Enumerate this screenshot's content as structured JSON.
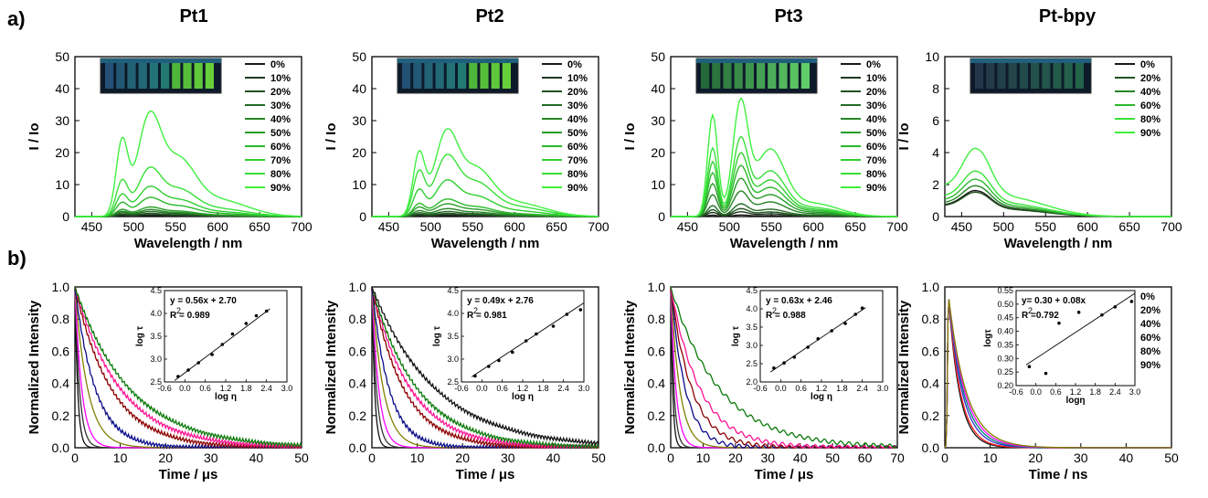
{
  "figure": {
    "row_labels": [
      "a)",
      "b)"
    ],
    "column_titles": [
      "Pt1",
      "Pt2",
      "Pt3",
      "Pt-bpy"
    ]
  },
  "colors": {
    "green_shades": [
      "#1a1a1a",
      "#1e3a1e",
      "#215221",
      "#226b22",
      "#258525",
      "#289d28",
      "#2cb82c",
      "#30cf30",
      "#38e038",
      "#40f040"
    ],
    "bpy_green": [
      "#1a1a1a",
      "#215221",
      "#258525",
      "#2cb82c",
      "#38e038",
      "#40f040"
    ],
    "decay_pt1_3": [
      "#111111",
      "#333333",
      "#ff00ff",
      "#808000",
      "#0b0b8a",
      "#8b0000",
      "#ff1493",
      "#0a7a0a"
    ],
    "decay_bpy": [
      "#111111",
      "#ff2020",
      "#3030d0",
      "#00807a",
      "#ff00ff",
      "#808000"
    ]
  },
  "chart_data": [
    {
      "type": "line",
      "panel": "a",
      "title": "Pt1",
      "xlabel": "Wavelength / nm",
      "ylabel": "I / Io",
      "xlim": [
        430,
        700
      ],
      "ylim": [
        0,
        50
      ],
      "xticks": [
        450,
        500,
        550,
        600,
        650,
        700
      ],
      "yticks": [
        0,
        10,
        20,
        30,
        40,
        50
      ],
      "has_photo_inset": true,
      "photo": "cuvette-photo-pt1",
      "series": [
        {
          "name": "0%",
          "profile": "three-peak",
          "peak_max": 0.3
        },
        {
          "name": "10%",
          "profile": "three-peak",
          "peak_max": 0.6
        },
        {
          "name": "20%",
          "profile": "three-peak",
          "peak_max": 1.0
        },
        {
          "name": "30%",
          "profile": "three-peak",
          "peak_max": 1.6
        },
        {
          "name": "40%",
          "profile": "three-peak",
          "peak_max": 2.2
        },
        {
          "name": "50%",
          "profile": "three-peak",
          "peak_max": 3.0
        },
        {
          "name": "60%",
          "profile": "three-peak",
          "peak_max": 6.0
        },
        {
          "name": "70%",
          "profile": "three-peak",
          "peak_max": 9.5
        },
        {
          "name": "80%",
          "profile": "three-peak",
          "peak_max": 15.5
        },
        {
          "name": "90%",
          "profile": "three-peak",
          "peak_max": 33
        }
      ]
    },
    {
      "type": "line",
      "panel": "a",
      "title": "Pt2",
      "xlabel": "Wavelength / nm",
      "ylabel": "I / Io",
      "xlim": [
        430,
        700
      ],
      "ylim": [
        0,
        50
      ],
      "xticks": [
        450,
        500,
        550,
        600,
        650,
        700
      ],
      "yticks": [
        0,
        10,
        20,
        30,
        40,
        50
      ],
      "has_photo_inset": true,
      "photo": "cuvette-photo-pt2",
      "series": [
        {
          "name": "0%",
          "profile": "three-peak",
          "peak_max": 0.3
        },
        {
          "name": "10%",
          "profile": "three-peak",
          "peak_max": 0.6
        },
        {
          "name": "20%",
          "profile": "three-peak",
          "peak_max": 1.0
        },
        {
          "name": "30%",
          "profile": "three-peak",
          "peak_max": 1.6
        },
        {
          "name": "40%",
          "profile": "three-peak",
          "peak_max": 2.5
        },
        {
          "name": "50%",
          "profile": "three-peak",
          "peak_max": 4.0
        },
        {
          "name": "60%",
          "profile": "three-peak",
          "peak_max": 5.5
        },
        {
          "name": "70%",
          "profile": "three-peak",
          "peak_max": 11.5
        },
        {
          "name": "80%",
          "profile": "three-peak",
          "peak_max": 19.5
        },
        {
          "name": "90%",
          "profile": "three-peak",
          "peak_max": 27.5
        }
      ]
    },
    {
      "type": "line",
      "panel": "a",
      "title": "Pt3",
      "xlabel": "Wavelength / nm",
      "ylabel": "I / Io",
      "xlim": [
        430,
        700
      ],
      "ylim": [
        0,
        50
      ],
      "xticks": [
        450,
        500,
        550,
        600,
        650,
        700
      ],
      "yticks": [
        0,
        10,
        20,
        30,
        40,
        50
      ],
      "has_photo_inset": true,
      "photo": "cuvette-photo-pt3",
      "series": [
        {
          "name": "0%",
          "profile": "two-sharp-peak",
          "peak_max": 0.5
        },
        {
          "name": "10%",
          "profile": "two-sharp-peak",
          "peak_max": 1.5
        },
        {
          "name": "20%",
          "profile": "two-sharp-peak",
          "peak_max": 2.5
        },
        {
          "name": "30%",
          "profile": "two-sharp-peak",
          "peak_max": 4.0
        },
        {
          "name": "40%",
          "profile": "two-sharp-peak",
          "peak_max": 8.0
        },
        {
          "name": "50%",
          "profile": "two-sharp-peak",
          "peak_max": 12.0
        },
        {
          "name": "60%",
          "profile": "two-sharp-peak",
          "peak_max": 16.0
        },
        {
          "name": "70%",
          "profile": "two-sharp-peak",
          "peak_max": 20.0
        },
        {
          "name": "80%",
          "profile": "two-sharp-peak",
          "peak_max": 25.0
        },
        {
          "name": "90%",
          "profile": "two-sharp-peak",
          "peak_max": 37.0
        }
      ]
    },
    {
      "type": "line",
      "panel": "a",
      "title": "Pt-bpy",
      "xlabel": "Wavelength / nm",
      "ylabel": "I / Io",
      "xlim": [
        430,
        700
      ],
      "ylim": [
        0,
        10
      ],
      "xticks": [
        450,
        500,
        550,
        600,
        650,
        700
      ],
      "yticks": [
        0,
        2,
        4,
        6,
        8,
        10
      ],
      "has_photo_inset": true,
      "photo": "cuvette-photo-ptbpy",
      "series": [
        {
          "name": "0%",
          "profile": "single-peak",
          "peak_max": 1.6
        },
        {
          "name": "20%",
          "profile": "single-peak",
          "peak_max": 1.5
        },
        {
          "name": "40%",
          "profile": "single-peak",
          "peak_max": 1.9
        },
        {
          "name": "60%",
          "profile": "single-peak",
          "peak_max": 2.3
        },
        {
          "name": "80%",
          "profile": "single-peak",
          "peak_max": 2.8
        },
        {
          "name": "90%",
          "profile": "single-peak",
          "peak_max": 4.2
        }
      ]
    },
    {
      "type": "line",
      "panel": "b",
      "xlabel": "Time / μs",
      "ylabel": "Normalized Intensity",
      "xlim": [
        0,
        50
      ],
      "ylim": [
        0,
        1.0
      ],
      "xticks": [
        0,
        10,
        20,
        30,
        40,
        50
      ],
      "yticks": [
        0.0,
        0.2,
        0.4,
        0.6,
        0.8,
        1.0
      ],
      "decays_tau": [
        0.6,
        1.0,
        1.5,
        2.8,
        4.5,
        8,
        10,
        12
      ],
      "inset": {
        "equation": "y = 0.56x + 2.70",
        "r2": "R  = 0.989",
        "xlabel": "log η",
        "ylabel": "log τ",
        "xlim": [
          -0.6,
          3.0
        ],
        "ylim": [
          2.5,
          4.5
        ],
        "xticks": [
          "-0.6",
          "0.0",
          "0.6",
          "1.2",
          "1.8",
          "2.4",
          "3.0"
        ],
        "yticks": [
          "2.5",
          "3.0",
          "3.5",
          "4.0",
          "4.5"
        ],
        "points": [
          [
            -0.2,
            2.62
          ],
          [
            0.1,
            2.76
          ],
          [
            0.4,
            2.92
          ],
          [
            0.8,
            3.1
          ],
          [
            1.1,
            3.32
          ],
          [
            1.4,
            3.55
          ],
          [
            1.8,
            3.78
          ],
          [
            2.1,
            3.95
          ],
          [
            2.4,
            4.05
          ]
        ],
        "fit": {
          "m": 0.56,
          "b": 2.7
        }
      }
    },
    {
      "type": "line",
      "panel": "b",
      "xlabel": "Time / μs",
      "ylabel": "Normalized Intensity",
      "xlim": [
        0,
        50
      ],
      "ylim": [
        0,
        1.0
      ],
      "xticks": [
        0,
        10,
        20,
        30,
        40,
        50
      ],
      "yticks": [
        0.0,
        0.2,
        0.4,
        0.6,
        0.8,
        1.0
      ],
      "decays_tau": [
        0.6,
        1.0,
        1.5,
        2.5,
        3.8,
        7,
        8.5,
        10,
        14
      ],
      "inset": {
        "equation": "y = 0.49x + 2.76",
        "r2": "R  = 0.981",
        "xlabel": "log η",
        "ylabel": "log τ",
        "xlim": [
          -0.6,
          3.0
        ],
        "ylim": [
          2.5,
          4.5
        ],
        "xticks": [
          "-0.6",
          "0.0",
          "0.6",
          "1.2",
          "1.8",
          "2.4",
          "3.0"
        ],
        "yticks": [
          "2.5",
          "3.0",
          "3.5",
          "4.0",
          "4.5"
        ],
        "points": [
          [
            -0.2,
            2.63
          ],
          [
            0.2,
            2.84
          ],
          [
            0.5,
            2.97
          ],
          [
            0.9,
            3.15
          ],
          [
            1.3,
            3.4
          ],
          [
            1.6,
            3.55
          ],
          [
            2.1,
            3.72
          ],
          [
            2.5,
            3.98
          ],
          [
            2.9,
            4.08
          ]
        ],
        "fit": {
          "m": 0.49,
          "b": 2.76
        }
      }
    },
    {
      "type": "line",
      "panel": "b",
      "xlabel": "Time / μs",
      "ylabel": "Normalized Intensity",
      "xlim": [
        0,
        70
      ],
      "ylim": [
        0,
        1.0
      ],
      "xticks": [
        0,
        10,
        20,
        30,
        40,
        50,
        60,
        70
      ],
      "yticks": [
        0.0,
        0.2,
        0.4,
        0.6,
        0.8,
        1.0
      ],
      "decays_tau": [
        0.6,
        1.0,
        1.6,
        2.8,
        4.5,
        6.5,
        9,
        15
      ],
      "inset": {
        "equation": "y = 0.63x + 2.46",
        "r2": "R  = 0.988",
        "xlabel": "log η",
        "ylabel": "log τ",
        "xlim": [
          -0.6,
          3.0
        ],
        "ylim": [
          2.0,
          4.5
        ],
        "xticks": [
          "-0.6",
          "0.0",
          "0.6",
          "1.2",
          "1.8",
          "2.4",
          "3.0"
        ],
        "yticks": [
          "2.0",
          "2.5",
          "3.0",
          "3.5",
          "4.0",
          "4.5"
        ],
        "points": [
          [
            -0.2,
            2.38
          ],
          [
            0.1,
            2.52
          ],
          [
            0.4,
            2.68
          ],
          [
            0.8,
            2.95
          ],
          [
            1.1,
            3.18
          ],
          [
            1.5,
            3.4
          ],
          [
            1.9,
            3.6
          ],
          [
            2.2,
            3.85
          ],
          [
            2.4,
            4.02
          ]
        ],
        "fit": {
          "m": 0.63,
          "b": 2.46
        }
      }
    },
    {
      "type": "line",
      "panel": "b",
      "xlabel": "Time / ns",
      "ylabel": "Normalized Intensity",
      "xlim": [
        0,
        50
      ],
      "ylim": [
        0,
        1.0
      ],
      "xticks": [
        0,
        10,
        20,
        30,
        40,
        50
      ],
      "yticks": [
        0.0,
        0.2,
        0.4,
        0.6,
        0.8,
        1.0
      ],
      "decays_tau": [
        2.4,
        2.6,
        3.0,
        3.3,
        3.6,
        3.9
      ],
      "legend": [
        "0%",
        "20%",
        "40%",
        "60%",
        "80%",
        "90%"
      ],
      "inset": {
        "equation": "y= 0.30 + 0.08x",
        "r2": "R =0.792",
        "xlabel": "logη",
        "ylabel": "logτ",
        "xlim": [
          -0.6,
          3.0
        ],
        "ylim": [
          0.2,
          0.55
        ],
        "xticks": [
          "-0.6",
          "0.0",
          "0.6",
          "1.2",
          "1.8",
          "2.4",
          "3.0"
        ],
        "yticks": [
          "0.20",
          "0.25",
          "0.30",
          "0.35",
          "0.40",
          "0.45",
          "0.50",
          "0.55"
        ],
        "points": [
          [
            -0.2,
            0.27
          ],
          [
            0.3,
            0.245
          ],
          [
            0.7,
            0.43
          ],
          [
            1.3,
            0.47
          ],
          [
            2.0,
            0.46
          ],
          [
            2.4,
            0.49
          ],
          [
            2.9,
            0.51
          ]
        ],
        "fit": {
          "m": 0.08,
          "b": 0.3
        }
      }
    }
  ]
}
